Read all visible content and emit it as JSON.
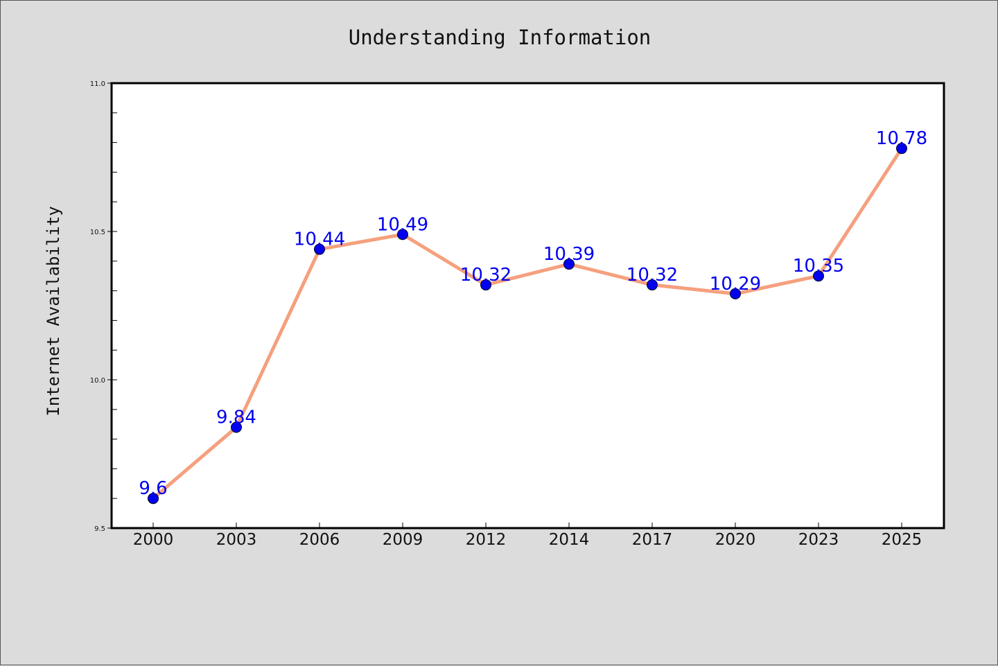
{
  "chart_data": {
    "type": "line",
    "title": "Understanding Information",
    "xlabel": "",
    "ylabel": "Internet Availability",
    "categories": [
      "2000",
      "2003",
      "2006",
      "2009",
      "2012",
      "2014",
      "2017",
      "2020",
      "2023",
      "2025"
    ],
    "series": [
      {
        "values": [
          9.6,
          9.84,
          10.44,
          10.49,
          10.32,
          10.39,
          10.32,
          10.29,
          10.35,
          10.78
        ]
      }
    ],
    "data_labels": [
      "9.6",
      "9.84",
      "10.44",
      "10.49",
      "10.32",
      "10.39",
      "10.32",
      "10.29",
      "10.35",
      "10.78"
    ],
    "ylim": [
      9.5,
      11.0
    ],
    "yticks": [
      9.5,
      10.0,
      10.5,
      11.0
    ],
    "ytick_labels": [
      "9.5",
      "10.0",
      "10.5",
      "11.0"
    ],
    "grid": false,
    "colors": {
      "line": "#f5a07e",
      "marker": "#0000ee",
      "data_label": "#0000ee",
      "background": "#dcdcdc",
      "plot_area": "#ffffff"
    }
  }
}
